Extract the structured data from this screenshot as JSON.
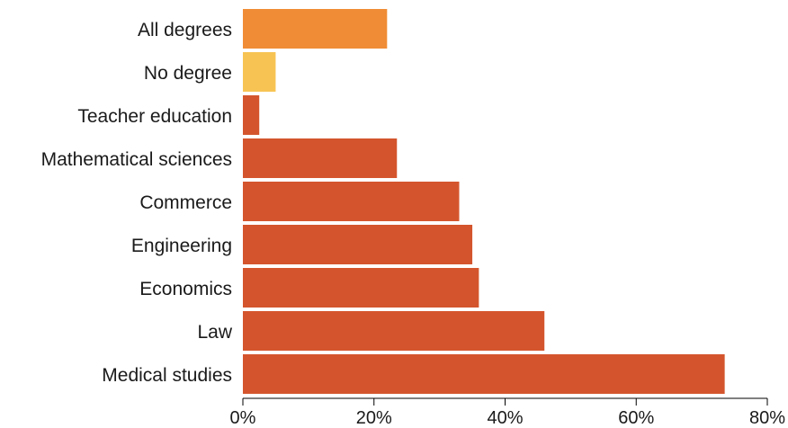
{
  "chart_data": {
    "type": "bar",
    "orientation": "horizontal",
    "categories": [
      "All degrees",
      "No degree",
      "Teacher education",
      "Mathematical sciences",
      "Commerce",
      "Engineering",
      "Economics",
      "Law",
      "Medical studies"
    ],
    "values": [
      22,
      5,
      2.5,
      23.5,
      33,
      35,
      36,
      46,
      73.5
    ],
    "colors": [
      "#f08c35",
      "#f7c453",
      "#d4552d",
      "#d4552d",
      "#d4552d",
      "#d4552d",
      "#d4552d",
      "#d4552d",
      "#d4552d"
    ],
    "x_ticks": [
      "0%",
      "20%",
      "40%",
      "60%",
      "80%"
    ],
    "xlim": [
      0,
      80
    ],
    "unit": "%",
    "grid": false,
    "legend": "none",
    "title": "",
    "xlabel": "",
    "ylabel": ""
  }
}
